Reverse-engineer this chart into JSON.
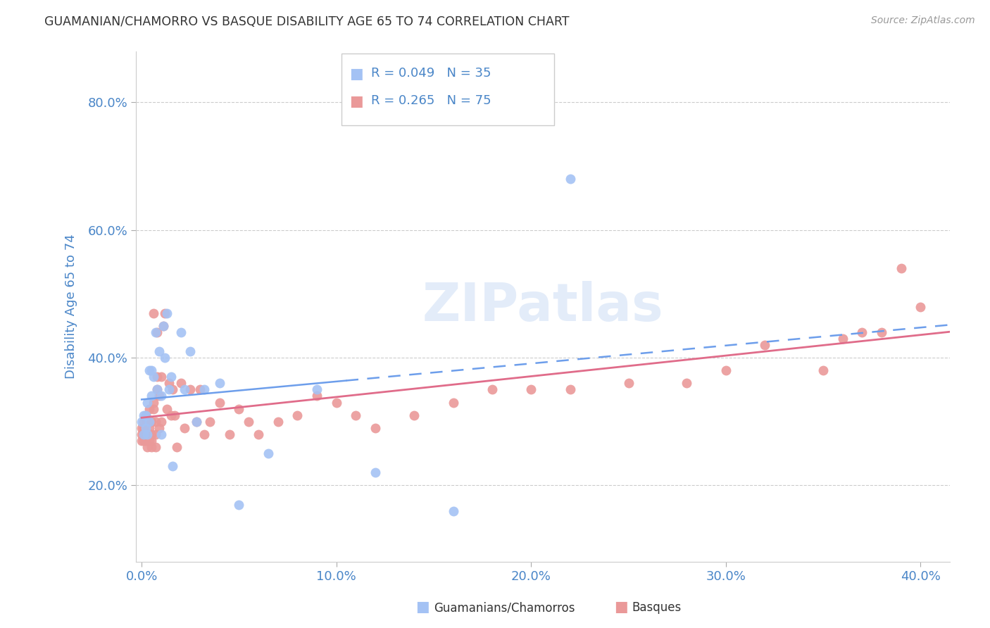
{
  "title": "GUAMANIAN/CHAMORRO VS BASQUE DISABILITY AGE 65 TO 74 CORRELATION CHART",
  "source": "Source: ZipAtlas.com",
  "ylabel": "Disability Age 65 to 74",
  "x_tick_labels": [
    "0.0%",
    "10.0%",
    "20.0%",
    "30.0%",
    "40.0%"
  ],
  "x_tick_vals": [
    0.0,
    0.1,
    0.2,
    0.3,
    0.4
  ],
  "y_tick_labels": [
    "20.0%",
    "40.0%",
    "60.0%",
    "80.0%"
  ],
  "y_tick_vals": [
    0.2,
    0.4,
    0.6,
    0.8
  ],
  "xlim": [
    -0.003,
    0.415
  ],
  "ylim": [
    0.08,
    0.88
  ],
  "color_blue": "#a4c2f4",
  "color_pink": "#ea9999",
  "color_line_blue": "#6d9eeb",
  "color_line_pink": "#e06c8a",
  "color_tick": "#4a86c8",
  "color_grid": "#cccccc",
  "guam_x": [
    0.0,
    0.001,
    0.001,
    0.002,
    0.002,
    0.003,
    0.003,
    0.004,
    0.004,
    0.005,
    0.005,
    0.006,
    0.007,
    0.008,
    0.009,
    0.01,
    0.01,
    0.011,
    0.012,
    0.013,
    0.014,
    0.015,
    0.016,
    0.02,
    0.022,
    0.025,
    0.028,
    0.032,
    0.04,
    0.05,
    0.065,
    0.09,
    0.12,
    0.16,
    0.22
  ],
  "guam_y": [
    0.3,
    0.31,
    0.28,
    0.31,
    0.29,
    0.33,
    0.28,
    0.3,
    0.38,
    0.34,
    0.38,
    0.37,
    0.44,
    0.35,
    0.41,
    0.34,
    0.28,
    0.45,
    0.4,
    0.47,
    0.35,
    0.37,
    0.23,
    0.44,
    0.35,
    0.41,
    0.3,
    0.35,
    0.36,
    0.17,
    0.25,
    0.35,
    0.22,
    0.16,
    0.68
  ],
  "basque_x": [
    0.0,
    0.0,
    0.0,
    0.001,
    0.001,
    0.001,
    0.001,
    0.002,
    0.002,
    0.002,
    0.002,
    0.003,
    0.003,
    0.003,
    0.004,
    0.004,
    0.004,
    0.005,
    0.005,
    0.005,
    0.005,
    0.006,
    0.006,
    0.006,
    0.007,
    0.007,
    0.007,
    0.008,
    0.008,
    0.008,
    0.009,
    0.009,
    0.01,
    0.01,
    0.011,
    0.012,
    0.013,
    0.014,
    0.015,
    0.016,
    0.017,
    0.018,
    0.02,
    0.022,
    0.025,
    0.028,
    0.03,
    0.032,
    0.035,
    0.04,
    0.045,
    0.05,
    0.055,
    0.06,
    0.07,
    0.08,
    0.09,
    0.1,
    0.11,
    0.12,
    0.14,
    0.16,
    0.18,
    0.2,
    0.22,
    0.25,
    0.28,
    0.3,
    0.32,
    0.35,
    0.36,
    0.37,
    0.38,
    0.39,
    0.4
  ],
  "basque_y": [
    0.29,
    0.28,
    0.27,
    0.27,
    0.28,
    0.29,
    0.3,
    0.28,
    0.3,
    0.27,
    0.31,
    0.3,
    0.28,
    0.26,
    0.29,
    0.27,
    0.32,
    0.3,
    0.28,
    0.27,
    0.26,
    0.47,
    0.33,
    0.32,
    0.3,
    0.28,
    0.26,
    0.37,
    0.44,
    0.35,
    0.29,
    0.34,
    0.37,
    0.3,
    0.45,
    0.47,
    0.32,
    0.36,
    0.31,
    0.35,
    0.31,
    0.26,
    0.36,
    0.29,
    0.35,
    0.3,
    0.35,
    0.28,
    0.3,
    0.33,
    0.28,
    0.32,
    0.3,
    0.28,
    0.3,
    0.31,
    0.34,
    0.33,
    0.31,
    0.29,
    0.31,
    0.33,
    0.35,
    0.35,
    0.35,
    0.36,
    0.36,
    0.38,
    0.42,
    0.38,
    0.43,
    0.44,
    0.44,
    0.54,
    0.48
  ],
  "guam_trend_x_start": 0.0,
  "guam_trend_x_solid_end": 0.105,
  "guam_trend_x_end": 0.415,
  "basque_trend_x_start": 0.0,
  "basque_trend_x_end": 0.415
}
